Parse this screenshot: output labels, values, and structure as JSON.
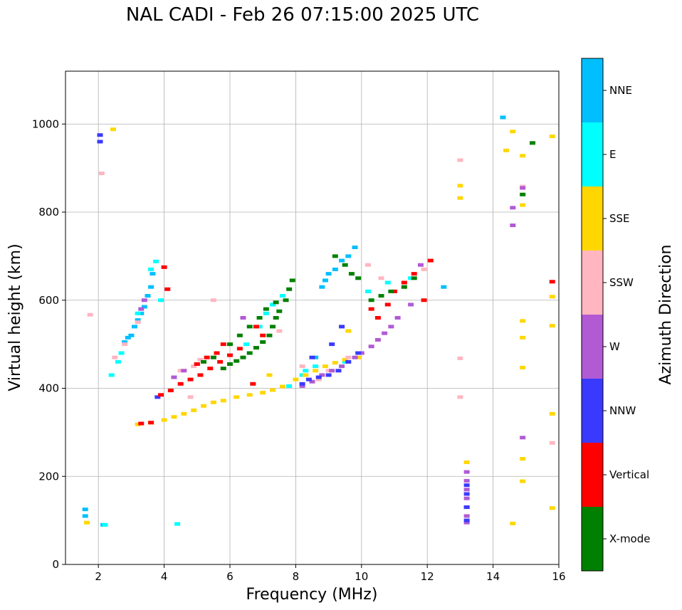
{
  "chart_data": {
    "type": "scatter",
    "title": "NAL CADI - Feb 26 07:15:00 2025 UTC",
    "xlabel": "Frequency (MHz)",
    "ylabel": "Virtual height (km)",
    "xlim": [
      1,
      16
    ],
    "ylim": [
      0,
      1120
    ],
    "xticks": [
      2,
      4,
      6,
      8,
      10,
      12,
      14,
      16
    ],
    "yticks": [
      0,
      200,
      400,
      600,
      800,
      1000
    ],
    "grid": true,
    "colorbar": {
      "label": "Azimuth Direction",
      "categories": [
        {
          "name": "X-mode",
          "color": "#008000"
        },
        {
          "name": "Vertical",
          "color": "#ff0000"
        },
        {
          "name": "NNW",
          "color": "#3a3aff"
        },
        {
          "name": "W",
          "color": "#b15ad4"
        },
        {
          "name": "SSW",
          "color": "#ffb6c1"
        },
        {
          "name": "SSE",
          "color": "#ffd700"
        },
        {
          "name": "E",
          "color": "#00ffff"
        },
        {
          "name": "NNE",
          "color": "#00bfff"
        }
      ]
    },
    "series": [
      {
        "name": "NNE",
        "points": [
          [
            3.0,
            520
          ],
          [
            3.1,
            540
          ],
          [
            3.2,
            555
          ],
          [
            3.3,
            570
          ],
          [
            3.4,
            585
          ],
          [
            3.5,
            610
          ],
          [
            3.6,
            630
          ],
          [
            3.65,
            660
          ],
          [
            2.8,
            505
          ],
          [
            2.9,
            515
          ],
          [
            8.8,
            630
          ],
          [
            8.9,
            645
          ],
          [
            9.0,
            660
          ],
          [
            9.2,
            670
          ],
          [
            9.4,
            690
          ],
          [
            9.6,
            700
          ],
          [
            9.8,
            720
          ],
          [
            12.5,
            630
          ],
          [
            14.3,
            1015
          ],
          [
            2.15,
            90
          ],
          [
            1.6,
            110
          ],
          [
            1.6,
            125
          ],
          [
            8.6,
            470
          ]
        ]
      },
      {
        "name": "E",
        "points": [
          [
            2.4,
            430
          ],
          [
            2.6,
            460
          ],
          [
            2.7,
            480
          ],
          [
            3.2,
            570
          ],
          [
            3.6,
            670
          ],
          [
            3.9,
            600
          ],
          [
            6.5,
            500
          ],
          [
            6.9,
            540
          ],
          [
            7.1,
            570
          ],
          [
            7.3,
            590
          ],
          [
            7.6,
            610
          ],
          [
            8.2,
            430
          ],
          [
            8.3,
            440
          ],
          [
            8.6,
            450
          ],
          [
            9.5,
            460
          ],
          [
            10.2,
            620
          ],
          [
            10.8,
            640
          ],
          [
            11.5,
            650
          ],
          [
            4.4,
            92
          ],
          [
            2.2,
            90
          ],
          [
            7.8,
            405
          ],
          [
            3.75,
            688
          ]
        ]
      },
      {
        "name": "SSE",
        "points": [
          [
            3.2,
            318
          ],
          [
            3.6,
            322
          ],
          [
            4.0,
            328
          ],
          [
            4.3,
            335
          ],
          [
            4.6,
            342
          ],
          [
            4.9,
            350
          ],
          [
            5.2,
            360
          ],
          [
            5.5,
            368
          ],
          [
            5.8,
            372
          ],
          [
            6.2,
            380
          ],
          [
            6.6,
            385
          ],
          [
            7.0,
            390
          ],
          [
            7.3,
            396
          ],
          [
            7.6,
            404
          ],
          [
            8.0,
            420
          ],
          [
            8.3,
            430
          ],
          [
            8.6,
            440
          ],
          [
            8.9,
            450
          ],
          [
            9.2,
            458
          ],
          [
            9.5,
            465
          ],
          [
            9.9,
            470
          ],
          [
            2.45,
            988
          ],
          [
            13.0,
            860
          ],
          [
            13.0,
            832
          ],
          [
            13.2,
            232
          ],
          [
            14.6,
            983
          ],
          [
            14.4,
            940
          ],
          [
            14.9,
            928
          ],
          [
            14.9,
            816
          ],
          [
            14.9,
            553
          ],
          [
            14.9,
            515
          ],
          [
            14.9,
            447
          ],
          [
            14.9,
            240
          ],
          [
            14.9,
            189
          ],
          [
            14.6,
            93
          ],
          [
            15.8,
            972
          ],
          [
            15.8,
            608
          ],
          [
            15.8,
            542
          ],
          [
            15.8,
            342
          ],
          [
            15.8,
            128
          ],
          [
            1.65,
            95
          ],
          [
            7.2,
            430
          ],
          [
            9.6,
            530
          ]
        ]
      },
      {
        "name": "SSW",
        "points": [
          [
            2.1,
            888
          ],
          [
            1.75,
            567
          ],
          [
            2.5,
            470
          ],
          [
            2.8,
            500
          ],
          [
            3.2,
            550
          ],
          [
            4.5,
            440
          ],
          [
            4.9,
            450
          ],
          [
            5.1,
            465
          ],
          [
            5.5,
            470
          ],
          [
            7.5,
            530
          ],
          [
            8.2,
            450
          ],
          [
            8.7,
            420
          ],
          [
            9.0,
            440
          ],
          [
            9.6,
            470
          ],
          [
            10.2,
            680
          ],
          [
            10.6,
            650
          ],
          [
            11.3,
            630
          ],
          [
            11.9,
            670
          ],
          [
            13.0,
            918
          ],
          [
            13.0,
            468
          ],
          [
            13.0,
            380
          ],
          [
            14.9,
            858
          ],
          [
            15.8,
            276
          ],
          [
            4.8,
            380
          ],
          [
            5.5,
            600
          ]
        ]
      },
      {
        "name": "W",
        "points": [
          [
            3.3,
            580
          ],
          [
            3.4,
            600
          ],
          [
            4.3,
            425
          ],
          [
            4.6,
            440
          ],
          [
            5.0,
            455
          ],
          [
            8.2,
            405
          ],
          [
            8.5,
            415
          ],
          [
            8.8,
            430
          ],
          [
            9.1,
            440
          ],
          [
            9.4,
            450
          ],
          [
            9.8,
            470
          ],
          [
            10.0,
            480
          ],
          [
            10.3,
            495
          ],
          [
            10.5,
            510
          ],
          [
            10.7,
            525
          ],
          [
            10.9,
            540
          ],
          [
            11.1,
            560
          ],
          [
            11.5,
            590
          ],
          [
            11.8,
            680
          ],
          [
            13.2,
            210
          ],
          [
            13.2,
            190
          ],
          [
            13.2,
            170
          ],
          [
            13.2,
            150
          ],
          [
            13.2,
            130
          ],
          [
            13.2,
            110
          ],
          [
            13.2,
            95
          ],
          [
            14.6,
            810
          ],
          [
            14.6,
            770
          ],
          [
            14.9,
            855
          ],
          [
            14.9,
            288
          ],
          [
            6.4,
            560
          ]
        ]
      },
      {
        "name": "NNW",
        "points": [
          [
            8.2,
            410
          ],
          [
            8.4,
            420
          ],
          [
            8.7,
            425
          ],
          [
            9.0,
            430
          ],
          [
            9.3,
            440
          ],
          [
            9.6,
            460
          ],
          [
            9.9,
            480
          ],
          [
            8.5,
            470
          ],
          [
            9.1,
            500
          ],
          [
            9.4,
            540
          ],
          [
            13.2,
            180
          ],
          [
            13.2,
            160
          ],
          [
            13.2,
            130
          ],
          [
            13.2,
            100
          ],
          [
            2.05,
            960
          ],
          [
            2.05,
            975
          ],
          [
            3.8,
            380
          ]
        ]
      },
      {
        "name": "Vertical",
        "points": [
          [
            3.3,
            320
          ],
          [
            3.6,
            322
          ],
          [
            3.9,
            385
          ],
          [
            4.2,
            395
          ],
          [
            4.5,
            410
          ],
          [
            4.8,
            420
          ],
          [
            5.1,
            430
          ],
          [
            5.4,
            445
          ],
          [
            5.7,
            460
          ],
          [
            6.0,
            475
          ],
          [
            6.3,
            490
          ],
          [
            5.0,
            455
          ],
          [
            5.3,
            470
          ],
          [
            5.6,
            480
          ],
          [
            5.8,
            500
          ],
          [
            4.1,
            625
          ],
          [
            4.0,
            675
          ],
          [
            6.8,
            540
          ],
          [
            7.0,
            520
          ],
          [
            10.3,
            580
          ],
          [
            10.5,
            560
          ],
          [
            10.8,
            590
          ],
          [
            11.0,
            620
          ],
          [
            11.3,
            640
          ],
          [
            11.6,
            660
          ],
          [
            11.9,
            600
          ],
          [
            12.1,
            690
          ],
          [
            15.8,
            642
          ],
          [
            6.7,
            410
          ]
        ]
      },
      {
        "name": "X-mode",
        "points": [
          [
            5.2,
            460
          ],
          [
            5.5,
            470
          ],
          [
            5.8,
            445
          ],
          [
            6.0,
            455
          ],
          [
            6.2,
            462
          ],
          [
            6.4,
            470
          ],
          [
            6.6,
            480
          ],
          [
            6.8,
            492
          ],
          [
            7.0,
            505
          ],
          [
            7.2,
            520
          ],
          [
            7.3,
            540
          ],
          [
            7.4,
            560
          ],
          [
            7.5,
            575
          ],
          [
            7.7,
            600
          ],
          [
            7.8,
            625
          ],
          [
            7.9,
            645
          ],
          [
            6.0,
            500
          ],
          [
            6.3,
            520
          ],
          [
            6.6,
            540
          ],
          [
            6.9,
            560
          ],
          [
            7.1,
            580
          ],
          [
            7.4,
            595
          ],
          [
            9.2,
            700
          ],
          [
            9.5,
            680
          ],
          [
            9.7,
            660
          ],
          [
            9.9,
            650
          ],
          [
            10.3,
            600
          ],
          [
            10.6,
            610
          ],
          [
            10.9,
            620
          ],
          [
            11.3,
            630
          ],
          [
            11.6,
            650
          ],
          [
            15.2,
            957
          ],
          [
            14.9,
            840
          ]
        ]
      }
    ]
  }
}
